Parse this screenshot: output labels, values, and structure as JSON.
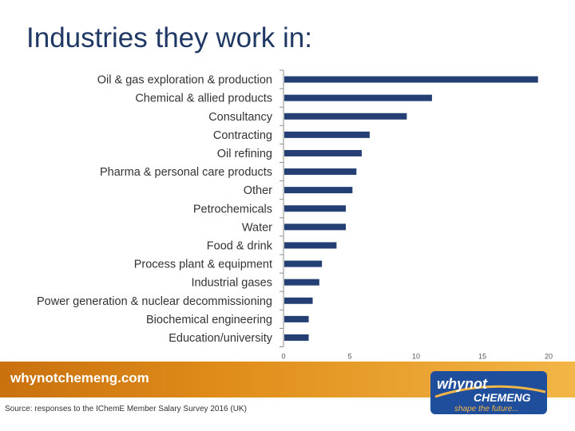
{
  "title": "Industries they work in:",
  "footer": {
    "site": "whynotchemeng.com",
    "source": "Source: responses to the IChemE Member Salary Survey 2016 (UK)",
    "logo_top": "whynot",
    "logo_mid": "CHEMENG",
    "logo_tag": "shape the future..."
  },
  "colors": {
    "bar": "#243f73",
    "title": "#1f3864",
    "band": "#e08d1a",
    "logo_blue": "#1f4e9c"
  },
  "chart_data": {
    "type": "bar",
    "orientation": "horizontal",
    "categories": [
      "Oil & gas exploration & production",
      "Chemical & allied products",
      "Consultancy",
      "Contracting",
      "Oil refining",
      "Pharma & personal care products",
      "Other",
      "Petrochemicals",
      "Water",
      "Food & drink",
      "Process plant & equipment",
      "Industrial gases",
      "Power generation & nuclear decommissioning",
      "Biochemical engineering",
      "Education/university"
    ],
    "values": [
      19.2,
      11.2,
      9.3,
      6.5,
      5.9,
      5.5,
      5.2,
      4.7,
      4.7,
      4.0,
      2.9,
      2.7,
      2.2,
      1.9,
      1.9
    ],
    "xlim": [
      0,
      20
    ],
    "xticks": [
      "0",
      "5",
      "10",
      "15",
      "20"
    ],
    "xlabel": "",
    "ylabel": "",
    "grid": false,
    "legend": "none"
  }
}
